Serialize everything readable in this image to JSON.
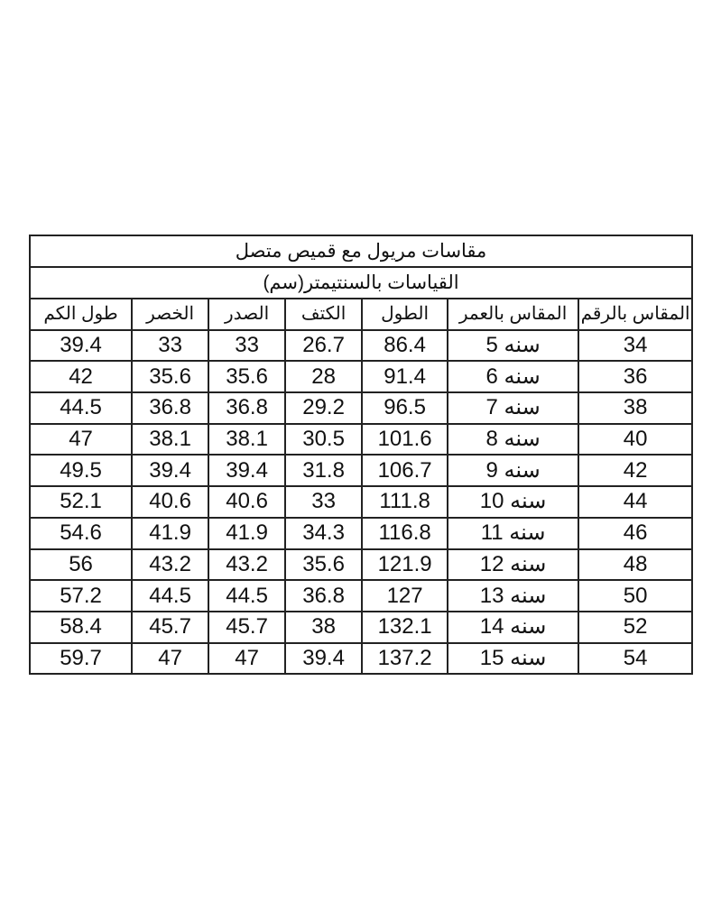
{
  "title": "مقاسات مريول مع قميص متصل",
  "subtitle": "القياسات بالسنتيمتر(سم)",
  "columns": [
    "المقاس بالرقم",
    "المقاس بالعمر",
    "الطول",
    "الكتف",
    "الصدر",
    "الخصر",
    "طول الكم"
  ],
  "rows": [
    [
      "34",
      "سنه 5",
      "86.4",
      "26.7",
      "33",
      "33",
      "39.4"
    ],
    [
      "36",
      "سنه 6",
      "91.4",
      "28",
      "35.6",
      "35.6",
      "42"
    ],
    [
      "38",
      "سنه 7",
      "96.5",
      "29.2",
      "36.8",
      "36.8",
      "44.5"
    ],
    [
      "40",
      "سنه 8",
      "101.6",
      "30.5",
      "38.1",
      "38.1",
      "47"
    ],
    [
      "42",
      "سنه 9",
      "106.7",
      "31.8",
      "39.4",
      "39.4",
      "49.5"
    ],
    [
      "44",
      "سنه 10",
      "111.8",
      "33",
      "40.6",
      "40.6",
      "52.1"
    ],
    [
      "46",
      "سنه 11",
      "116.8",
      "34.3",
      "41.9",
      "41.9",
      "54.6"
    ],
    [
      "48",
      "سنه 12",
      "121.9",
      "35.6",
      "43.2",
      "43.2",
      "56"
    ],
    [
      "50",
      "سنه 13",
      "127",
      "36.8",
      "44.5",
      "44.5",
      "57.2"
    ],
    [
      "52",
      "سنه 14",
      "132.1",
      "38",
      "45.7",
      "45.7",
      "58.4"
    ],
    [
      "54",
      "سنه 15",
      "137.2",
      "39.4",
      "47",
      "47",
      "59.7"
    ]
  ]
}
